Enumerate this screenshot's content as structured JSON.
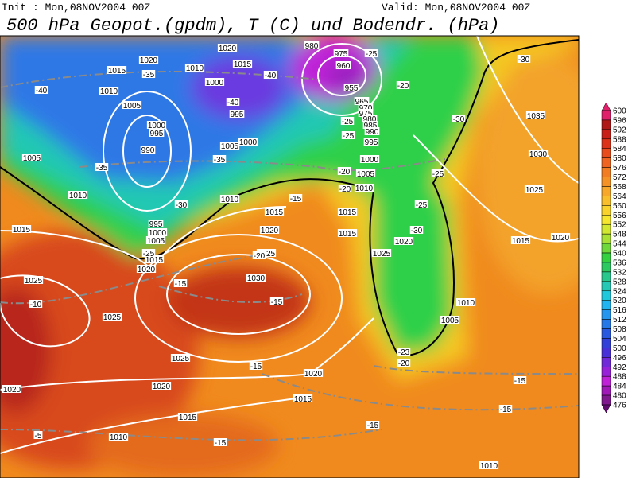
{
  "header": {
    "init": "Init : Mon,08NOV2004 00Z",
    "valid": "Valid: Mon,08NOV2004 00Z",
    "title": "500 hPa Geopot.(gpdm), T (C) und Bodendr. (hPa)"
  },
  "colorbar": {
    "levels": [
      600,
      596,
      592,
      588,
      584,
      580,
      576,
      572,
      568,
      564,
      560,
      556,
      552,
      548,
      544,
      540,
      536,
      532,
      528,
      524,
      520,
      516,
      512,
      508,
      504,
      500,
      496,
      492,
      488,
      484,
      480,
      476
    ],
    "colors": [
      "#e0206a",
      "#b01818",
      "#c82018",
      "#dc3318",
      "#e84c1c",
      "#ee6420",
      "#f27c22",
      "#f59226",
      "#f7a82a",
      "#f9be2c",
      "#f9d22c",
      "#f6e62e",
      "#d2e830",
      "#a8e034",
      "#6ed83a",
      "#34d040",
      "#2cc860",
      "#28c88c",
      "#24c8b4",
      "#20c8dc",
      "#20b4f0",
      "#2496f0",
      "#2478e8",
      "#2858e0",
      "#3040d8",
      "#4830d8",
      "#7028d8",
      "#9820d8",
      "#c020d8",
      "#a018b8",
      "#801890",
      "#600c70"
    ]
  },
  "contour_labels": {
    "pressure": [
      "1020",
      "1015",
      "1010",
      "1000",
      "1020",
      "1015",
      "1010",
      "1005",
      "1000",
      "995",
      "990",
      "995",
      "1005",
      "1000",
      "1005",
      "1010",
      "1010",
      "1015",
      "1015",
      "1020",
      "995",
      "1000",
      "1005",
      "1015",
      "1020",
      "1025",
      "1030",
      "1025",
      "1025",
      "1025",
      "1020",
      "1020",
      "1015",
      "1010",
      "1015",
      "1020",
      "1015",
      "1015",
      "1010",
      "1005",
      "1000",
      "1020",
      "1025",
      "1025",
      "1030",
      "1035",
      "1015",
      "1020",
      "1010",
      "1005",
      "1010",
      "980",
      "975",
      "960",
      "955",
      "965",
      "970",
      "975",
      "980",
      "985",
      "990",
      "995"
    ],
    "temperature": [
      "-25",
      "-30",
      "-20",
      "-40",
      "-35",
      "-40",
      "-40",
      "-30",
      "-25",
      "-25",
      "-35",
      "-35",
      "-30",
      "-20",
      "-25",
      "-25",
      "-30",
      "-20",
      "-15",
      "-25",
      "-20",
      "-15",
      "-15",
      "-10",
      "-23",
      "-20",
      "-15",
      "-15",
      "-15",
      "-15",
      "-15",
      "-5"
    ]
  }
}
